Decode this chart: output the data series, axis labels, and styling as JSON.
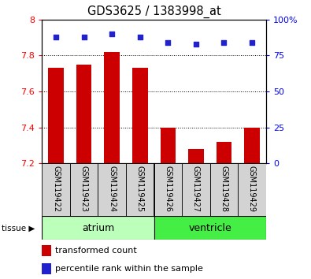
{
  "title": "GDS3625 / 1383998_at",
  "samples": [
    "GSM119422",
    "GSM119423",
    "GSM119424",
    "GSM119425",
    "GSM119426",
    "GSM119427",
    "GSM119428",
    "GSM119429"
  ],
  "transformed_count": [
    7.73,
    7.75,
    7.82,
    7.73,
    7.4,
    7.28,
    7.32,
    7.4
  ],
  "percentile_rank": [
    88,
    88,
    90,
    88,
    84,
    83,
    84,
    84
  ],
  "ylim_left": [
    7.2,
    8.0
  ],
  "ylim_right": [
    0,
    100
  ],
  "yticks_left": [
    7.2,
    7.4,
    7.6,
    7.8,
    8.0
  ],
  "yticks_right": [
    0,
    25,
    50,
    75,
    100
  ],
  "ytick_labels_right": [
    "0",
    "25",
    "50",
    "75",
    "100%"
  ],
  "bar_color": "#cc0000",
  "dot_color": "#2222cc",
  "bar_width": 0.55,
  "groups": [
    {
      "label": "atrium",
      "samples": [
        0,
        1,
        2,
        3
      ],
      "color": "#bbffbb"
    },
    {
      "label": "ventricle",
      "samples": [
        4,
        5,
        6,
        7
      ],
      "color": "#44ee44"
    }
  ],
  "tissue_label": "tissue",
  "legend_bar_label": "transformed count",
  "legend_dot_label": "percentile rank within the sample",
  "sample_box_color": "#d3d3d3"
}
